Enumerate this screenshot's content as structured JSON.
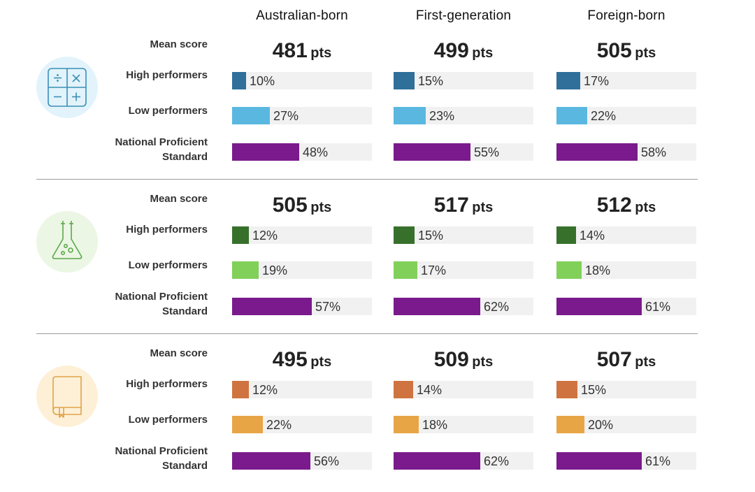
{
  "columns": [
    "Australian-born",
    "First-generation",
    "Foreign-born"
  ],
  "row_labels": {
    "mean": "Mean score",
    "high": "High performers",
    "low": "Low performers",
    "nps_line1": "National Proficient",
    "nps_line2": "Standard"
  },
  "unit": "pts",
  "colors": {
    "nps": "#7a1a8c",
    "maths_high": "#2f6f9a",
    "maths_low": "#5ab8e0",
    "maths_icon_bg": "#e2f3fb",
    "maths_icon": "#3a8fb5",
    "science_high": "#37702b",
    "science_low": "#80d05a",
    "science_icon_bg": "#ecf6e4",
    "science_icon": "#5aa84a",
    "reading_high": "#cf7440",
    "reading_low": "#e8a545",
    "reading_icon_bg": "#fdf0d6",
    "reading_icon": "#e0a24a"
  },
  "sections": [
    {
      "icon": "calculator-icon",
      "cells": [
        {
          "mean": "481",
          "high": "10%",
          "low": "27%",
          "nps": "48%"
        },
        {
          "mean": "499",
          "high": "15%",
          "low": "23%",
          "nps": "55%"
        },
        {
          "mean": "505",
          "high": "17%",
          "low": "22%",
          "nps": "58%"
        }
      ]
    },
    {
      "icon": "flask-icon",
      "cells": [
        {
          "mean": "505",
          "high": "12%",
          "low": "19%",
          "nps": "57%"
        },
        {
          "mean": "517",
          "high": "15%",
          "low": "17%",
          "nps": "62%"
        },
        {
          "mean": "512",
          "high": "14%",
          "low": "18%",
          "nps": "61%"
        }
      ]
    },
    {
      "icon": "book-icon",
      "cells": [
        {
          "mean": "495",
          "high": "12%",
          "low": "22%",
          "nps": "56%"
        },
        {
          "mean": "509",
          "high": "14%",
          "low": "18%",
          "nps": "62%"
        },
        {
          "mean": "507",
          "high": "15%",
          "low": "20%",
          "nps": "61%"
        }
      ]
    }
  ],
  "chart_data": {
    "type": "bar",
    "categories": [
      "Australian-born",
      "First-generation",
      "Foreign-born"
    ],
    "value_unit": "%",
    "groups": [
      {
        "mean_score_pts": [
          481,
          499,
          505
        ],
        "series": [
          {
            "name": "High performers",
            "values": [
              10,
              15,
              17
            ]
          },
          {
            "name": "Low performers",
            "values": [
              27,
              23,
              22
            ]
          },
          {
            "name": "National Proficient Standard",
            "values": [
              48,
              55,
              58
            ]
          }
        ]
      },
      {
        "mean_score_pts": [
          505,
          517,
          512
        ],
        "series": [
          {
            "name": "High performers",
            "values": [
              12,
              15,
              14
            ]
          },
          {
            "name": "Low performers",
            "values": [
              19,
              17,
              18
            ]
          },
          {
            "name": "National Proficient Standard",
            "values": [
              57,
              62,
              61
            ]
          }
        ]
      },
      {
        "mean_score_pts": [
          495,
          509,
          507
        ],
        "series": [
          {
            "name": "High performers",
            "values": [
              12,
              14,
              15
            ]
          },
          {
            "name": "Low performers",
            "values": [
              22,
              18,
              20
            ]
          },
          {
            "name": "National Proficient Standard",
            "values": [
              56,
              62,
              61
            ]
          }
        ]
      }
    ]
  }
}
